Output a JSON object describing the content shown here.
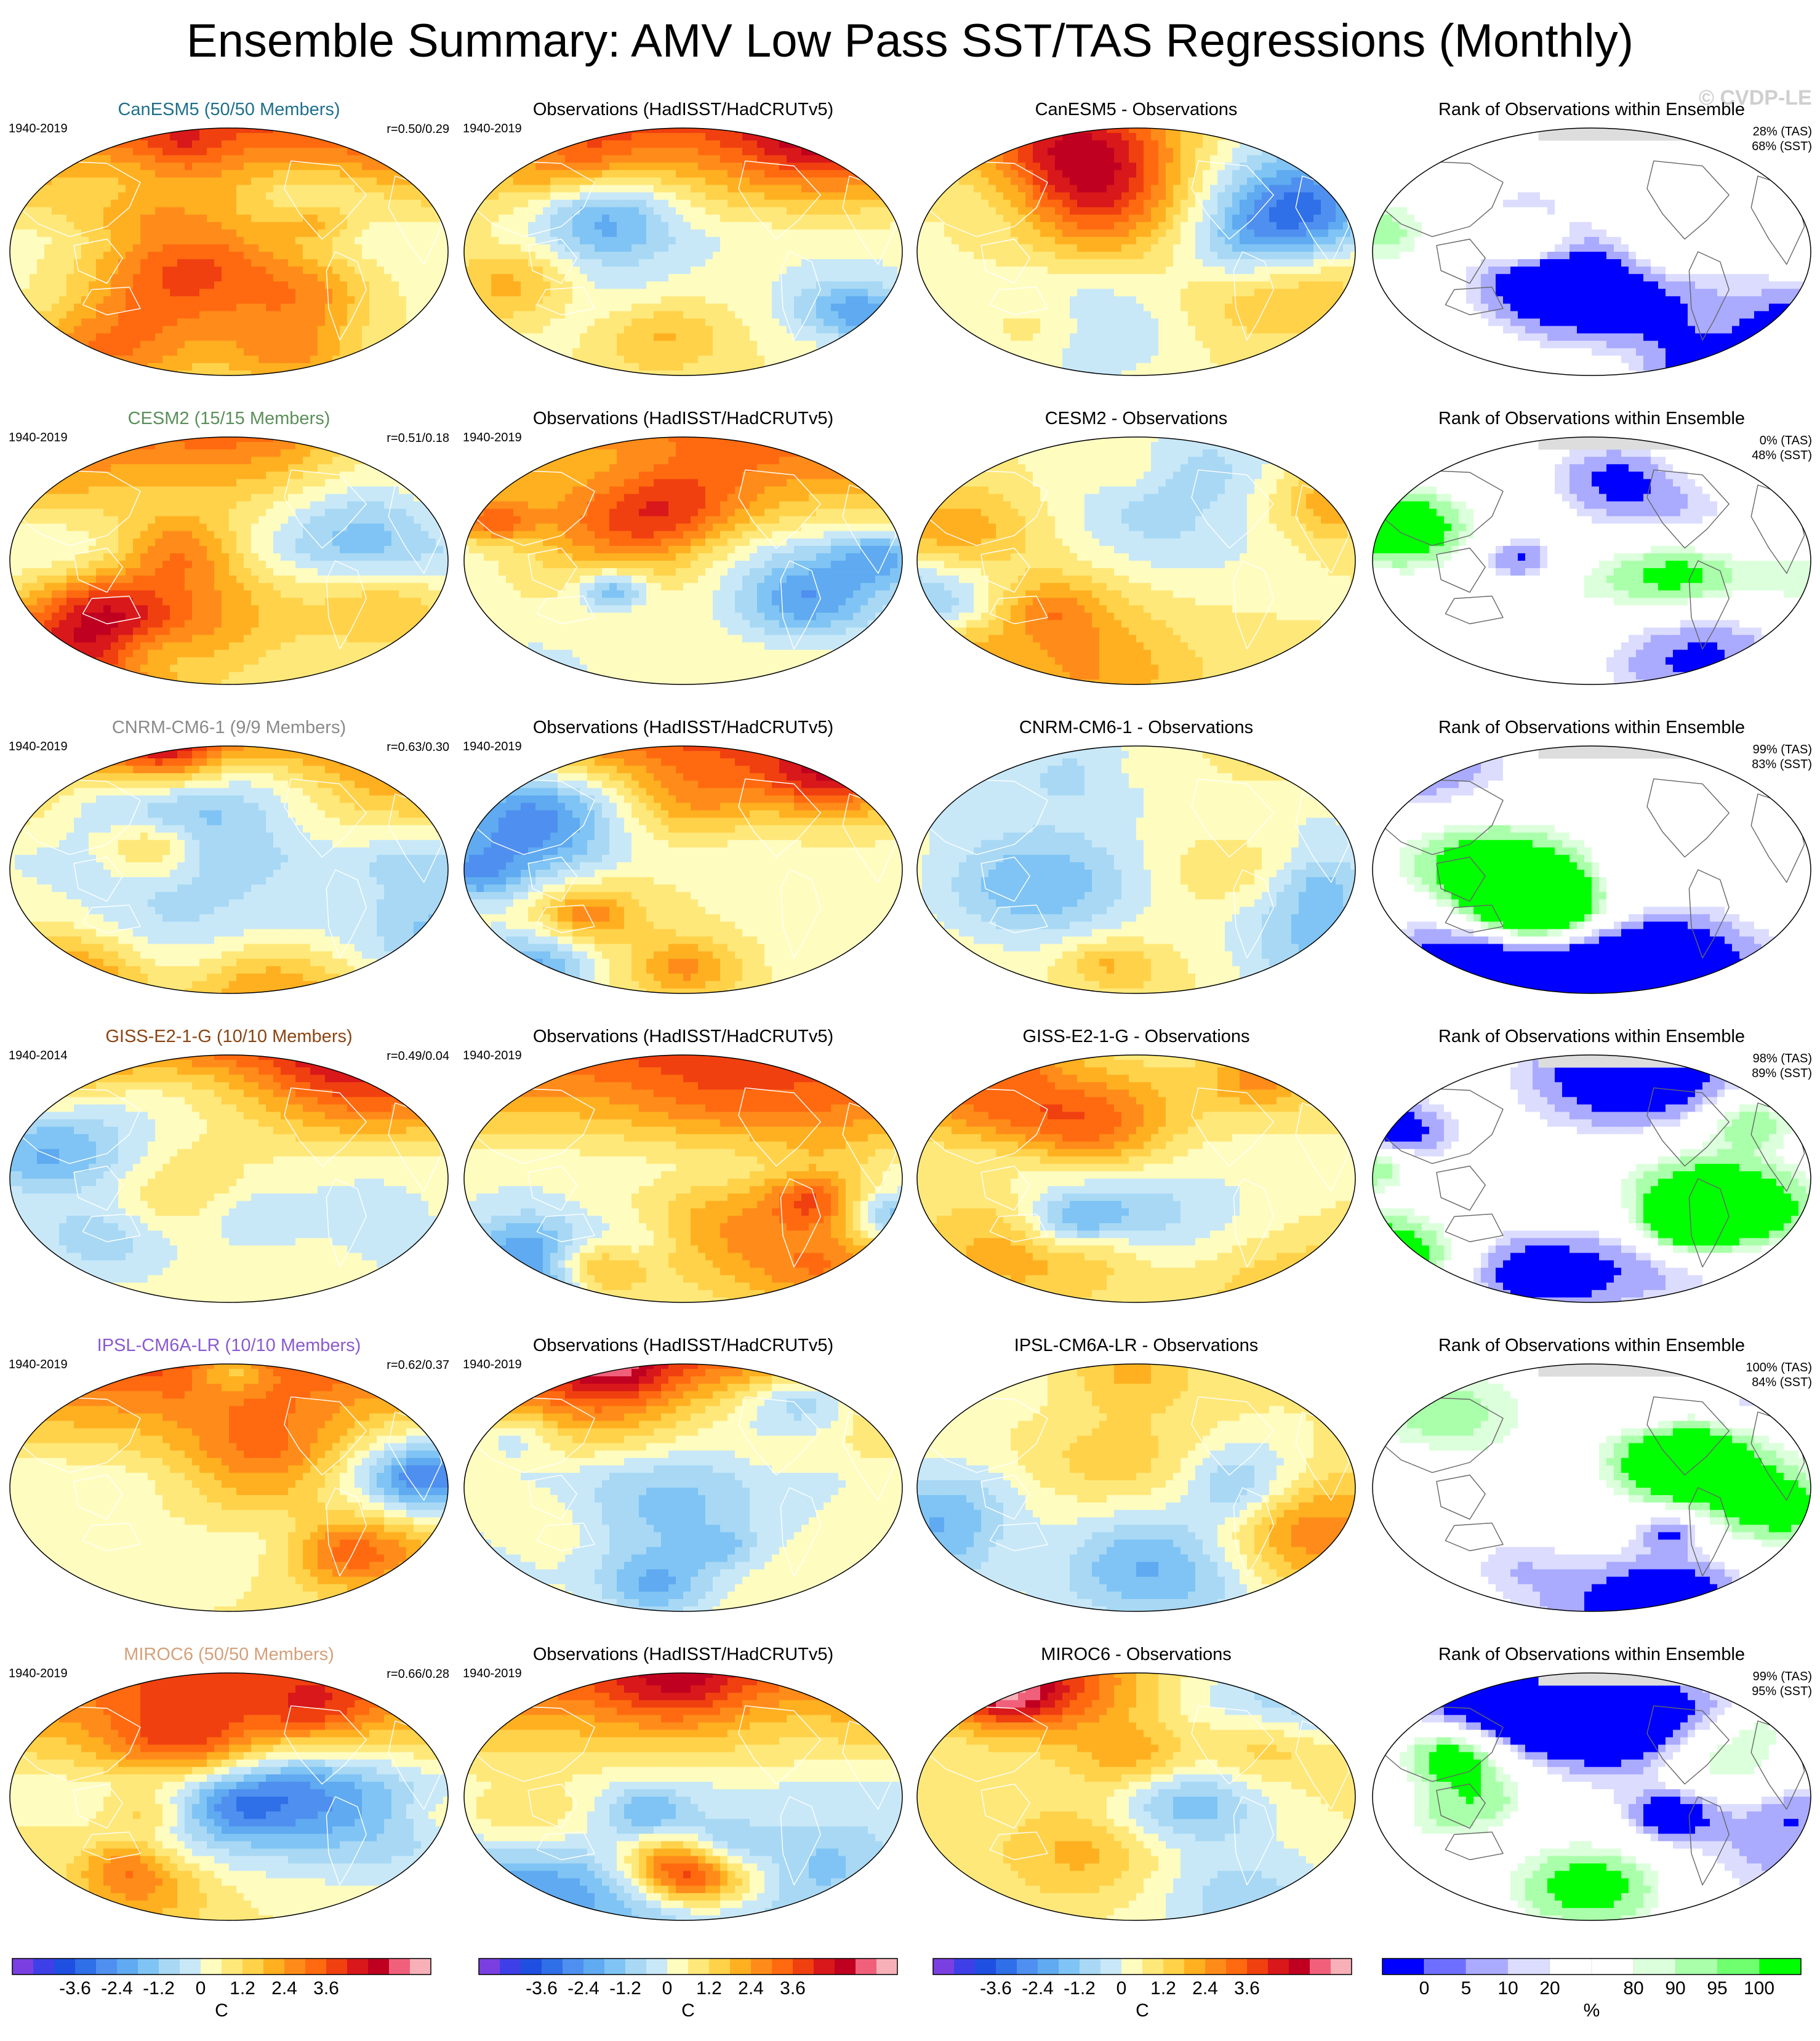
{
  "title": "Ensemble Summary: AMV Low Pass SST/TAS Regressions (Monthly)",
  "watermark": "© CVDP-LE",
  "rows": [
    {
      "model": "CanESM5",
      "model_title": "CanESM5 (50/50 Members)",
      "model_color": "#1f6f8b",
      "model_period": "1940-2019",
      "r_value": "r=0.50/0.29",
      "obs_title": "Observations (HadISST/HadCRUTv5)",
      "obs_period": "1940-2019",
      "diff_title": "CanESM5 - Observations",
      "rank_title": "Rank of Observations within Ensemble",
      "rank_tas": "28% (TAS)",
      "rank_sst": "68% (SST)"
    },
    {
      "model": "CESM2",
      "model_title": "CESM2 (15/15 Members)",
      "model_color": "#5a8f5a",
      "model_period": "1940-2019",
      "r_value": "r=0.51/0.18",
      "obs_title": "Observations (HadISST/HadCRUTv5)",
      "obs_period": "1940-2019",
      "diff_title": "CESM2 - Observations",
      "rank_title": "Rank of Observations within Ensemble",
      "rank_tas": "0% (TAS)",
      "rank_sst": "48% (SST)"
    },
    {
      "model": "CNRM-CM6-1",
      "model_title": "CNRM-CM6-1 (9/9 Members)",
      "model_color": "#8a8a8a",
      "model_period": "1940-2019",
      "r_value": "r=0.63/0.30",
      "obs_title": "Observations (HadISST/HadCRUTv5)",
      "obs_period": "1940-2019",
      "diff_title": "CNRM-CM6-1 - Observations",
      "rank_title": "Rank of Observations within Ensemble",
      "rank_tas": "99% (TAS)",
      "rank_sst": "83% (SST)"
    },
    {
      "model": "GISS-E2-1-G",
      "model_title": "GISS-E2-1-G (10/10 Members)",
      "model_color": "#8b4513",
      "model_period": "1940-2014",
      "r_value": "r=0.49/0.04",
      "obs_title": "Observations (HadISST/HadCRUTv5)",
      "obs_period": "1940-2019",
      "diff_title": "GISS-E2-1-G - Observations",
      "rank_title": "Rank of Observations within Ensemble",
      "rank_tas": "98% (TAS)",
      "rank_sst": "89% (SST)"
    },
    {
      "model": "IPSL-CM6A-LR",
      "model_title": "IPSL-CM6A-LR (10/10 Members)",
      "model_color": "#8a5ad0",
      "model_period": "1940-2019",
      "r_value": "r=0.62/0.37",
      "obs_title": "Observations (HadISST/HadCRUTv5)",
      "obs_period": "1940-2019",
      "diff_title": "IPSL-CM6A-LR - Observations",
      "rank_title": "Rank of Observations within Ensemble",
      "rank_tas": "100% (TAS)",
      "rank_sst": "84% (SST)"
    },
    {
      "model": "MIROC6",
      "model_title": "MIROC6 (50/50 Members)",
      "model_color": "#d4a07a",
      "model_period": "1940-2019",
      "r_value": "r=0.66/0.28",
      "obs_title": "Observations (HadISST/HadCRUTv5)",
      "obs_period": "1940-2019",
      "diff_title": "MIROC6 - Observations",
      "rank_title": "Rank of Observations within Ensemble",
      "rank_tas": "99% (TAS)",
      "rank_sst": "95% (SST)"
    }
  ],
  "colorbars": {
    "temperature": {
      "unit": "C",
      "tick_labels": [
        "-3.6",
        "-2.4",
        "-1.2",
        "0",
        "1.2",
        "2.4",
        "3.6"
      ],
      "colors": [
        "#7a3fe0",
        "#3f3fe8",
        "#1f4fe0",
        "#2f6fe8",
        "#4f8fef",
        "#5faaf0",
        "#7fc4f4",
        "#a8d8f4",
        "#c8e8f8",
        "#fffcc0",
        "#ffe87a",
        "#ffd24a",
        "#ffb020",
        "#ff8c1a",
        "#ff6a10",
        "#f04010",
        "#d8181a",
        "#c00020",
        "#f0607a",
        "#f8b0b8"
      ]
    },
    "percent": {
      "unit": "%",
      "tick_labels": [
        "0",
        "5",
        "10",
        "20",
        "80",
        "90",
        "95",
        "100"
      ],
      "colors": [
        "#0000ff",
        "#6f6fff",
        "#aaaaff",
        "#dcdcff",
        "#ffffff",
        "#ffffff",
        "#dcffdc",
        "#aaffaa",
        "#6fff6f",
        "#00ff00"
      ]
    }
  },
  "chart_data": {
    "type": "heatmap",
    "title": "Ensemble Summary: AMV Low Pass SST/TAS Regressions (Monthly)",
    "panels_per_row": [
      "model regression",
      "observations",
      "model - observations",
      "rank of observations"
    ],
    "models": [
      {
        "name": "CanESM5",
        "members": "50/50",
        "period": "1940-2019",
        "pattern_corr": [
          0.5,
          0.29
        ],
        "rank_tas_pct": 28,
        "rank_sst_pct": 68
      },
      {
        "name": "CESM2",
        "members": "15/15",
        "period": "1940-2019",
        "pattern_corr": [
          0.51,
          0.18
        ],
        "rank_tas_pct": 0,
        "rank_sst_pct": 48
      },
      {
        "name": "CNRM-CM6-1",
        "members": "9/9",
        "period": "1940-2019",
        "pattern_corr": [
          0.63,
          0.3
        ],
        "rank_tas_pct": 99,
        "rank_sst_pct": 83
      },
      {
        "name": "GISS-E2-1-G",
        "members": "10/10",
        "period": "1940-2014",
        "pattern_corr": [
          0.49,
          0.04
        ],
        "rank_tas_pct": 98,
        "rank_sst_pct": 89
      },
      {
        "name": "IPSL-CM6A-LR",
        "members": "10/10",
        "period": "1940-2019",
        "pattern_corr": [
          0.62,
          0.37
        ],
        "rank_tas_pct": 100,
        "rank_sst_pct": 84
      },
      {
        "name": "MIROC6",
        "members": "50/50",
        "period": "1940-2019",
        "pattern_corr": [
          0.66,
          0.28
        ],
        "rank_tas_pct": 99,
        "rank_sst_pct": 95
      }
    ],
    "regression_colorbar": {
      "unit": "C",
      "ticks": [
        -3.6,
        -2.4,
        -1.2,
        0,
        1.2,
        2.4,
        3.6
      ]
    },
    "rank_colorbar": {
      "unit": "%",
      "ticks": [
        0,
        5,
        10,
        20,
        80,
        90,
        95,
        100
      ]
    }
  }
}
